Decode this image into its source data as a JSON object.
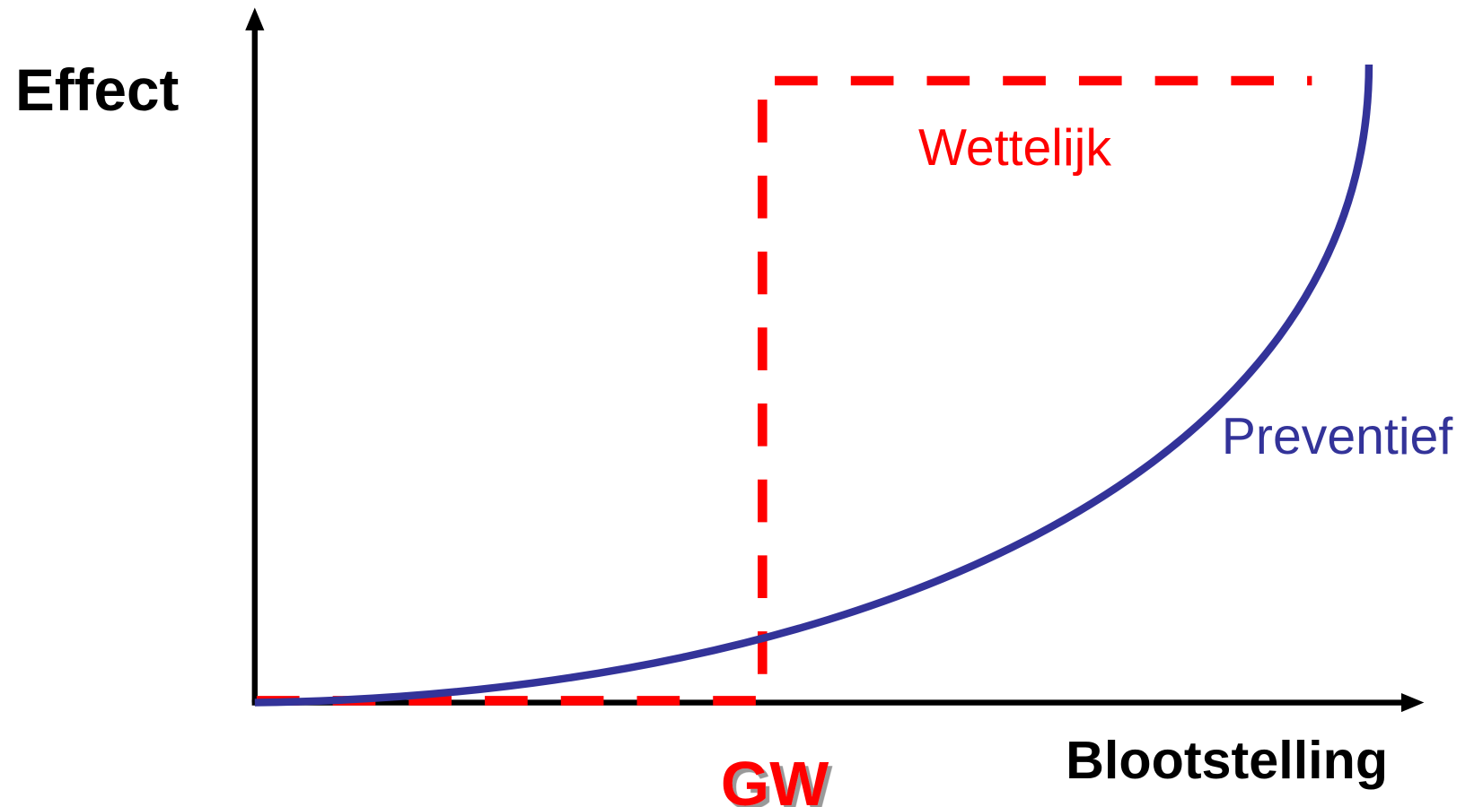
{
  "labels": {
    "y_axis": "Effect",
    "x_axis": "Blootstelling",
    "legal_curve": "Wettelijk",
    "preventive_curve": "Preventief",
    "limit_value": "GW"
  }
}
